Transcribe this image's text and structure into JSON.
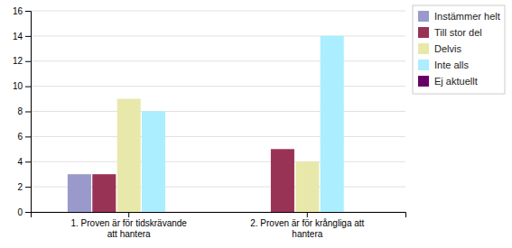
{
  "chart_data": {
    "type": "bar",
    "categories": [
      "1. Proven är för tidskrävande\natt hantera",
      "2. Proven är för krångliga att\nhantera"
    ],
    "series": [
      {
        "name": "Instämmer helt",
        "color": "#9999cc",
        "values": [
          3,
          0
        ]
      },
      {
        "name": "Till stor del",
        "color": "#993355",
        "values": [
          3,
          5
        ]
      },
      {
        "name": "Delvis",
        "color": "#e8e8aa",
        "values": [
          9,
          4
        ]
      },
      {
        "name": "Inte alls",
        "color": "#aaeeff",
        "values": [
          8,
          14
        ]
      },
      {
        "name": "Ej aktuellt",
        "color": "#660066",
        "values": [
          0,
          0
        ]
      }
    ],
    "ylim": [
      0,
      16
    ],
    "yticks": [
      0,
      2,
      4,
      6,
      8,
      10,
      12,
      14,
      16
    ],
    "grid": true,
    "legend": "right"
  }
}
